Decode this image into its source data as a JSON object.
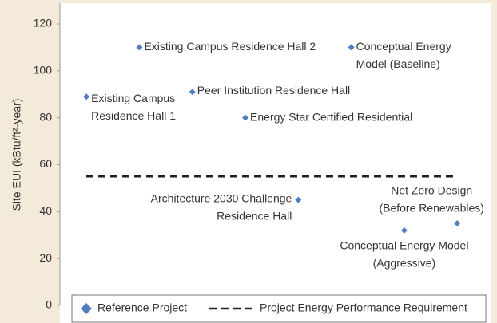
{
  "chart_data": {
    "type": "scatter",
    "ylabel": "Site EUI (kBtu/ft²-year)",
    "x": [
      1,
      2,
      3,
      4,
      5,
      6,
      7,
      8
    ],
    "xlim": [
      0.5,
      8.6
    ],
    "ylim": [
      0,
      120
    ],
    "yticks": [
      0,
      20,
      40,
      60,
      80,
      100,
      120
    ],
    "series": [
      {
        "name": "Reference Project",
        "color": "#4f7fbf",
        "values": [
          89,
          110,
          91,
          80,
          45,
          110,
          32,
          35
        ]
      }
    ],
    "point_labels": [
      [
        "Existing Campus",
        "Residence Hall 1"
      ],
      [
        "Existing Campus Residence Hall 2"
      ],
      [
        "Peer Institution Residence Hall"
      ],
      [
        "Energy Star Certified Residential"
      ],
      [
        "Architecture 2030 Challenge",
        "Residence Hall"
      ],
      [
        "Conceptual Energy",
        "Model (Baseline)"
      ],
      [
        "Conceptual Energy Model",
        "(Aggressive)"
      ],
      [
        "Net Zero Design",
        "(Before Renewables)"
      ]
    ],
    "reference_line": {
      "name": "Project Energy Performance Requirement",
      "value": 55,
      "color": "#222222"
    }
  }
}
